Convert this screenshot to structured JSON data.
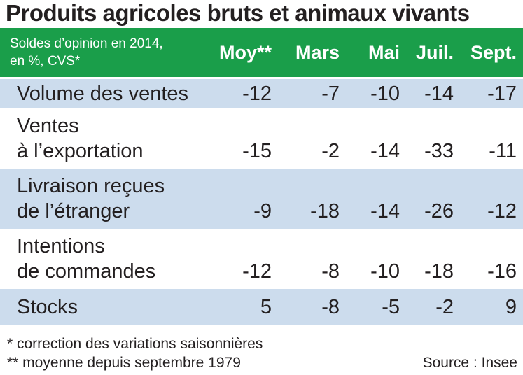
{
  "chart_data": {
    "type": "table",
    "title": "Produits agricoles bruts et animaux vivants",
    "header_note_line1": "Soldes d’opinion en 2014,",
    "header_note_line2": "en %, CVS*",
    "columns": [
      "Moy**",
      "Mars",
      "Mai",
      "Juil.",
      "Sept."
    ],
    "rows": [
      {
        "label_lines": [
          "Volume des ventes"
        ],
        "values": [
          -12,
          -7,
          -10,
          -14,
          -17
        ]
      },
      {
        "label_lines": [
          "Ventes",
          "à l’exportation"
        ],
        "values": [
          -15,
          -2,
          -14,
          -33,
          -11
        ]
      },
      {
        "label_lines": [
          "Livraison reçues",
          "de l’étranger"
        ],
        "values": [
          -9,
          -18,
          -14,
          -26,
          -12
        ]
      },
      {
        "label_lines": [
          "Intentions",
          "de commandes"
        ],
        "values": [
          -12,
          -8,
          -10,
          -18,
          -16
        ]
      },
      {
        "label_lines": [
          "Stocks"
        ],
        "values": [
          5,
          -8,
          -5,
          -2,
          9
        ]
      }
    ],
    "footnote1": "* correction des variations saisonnières",
    "footnote2": "** moyenne depuis septembre 1979",
    "source": "Source : Insee"
  },
  "colors": {
    "header_bg": "#1a9e4a",
    "header_text": "#ffffff",
    "row_shade": "#ccdced",
    "text": "#231f20"
  }
}
